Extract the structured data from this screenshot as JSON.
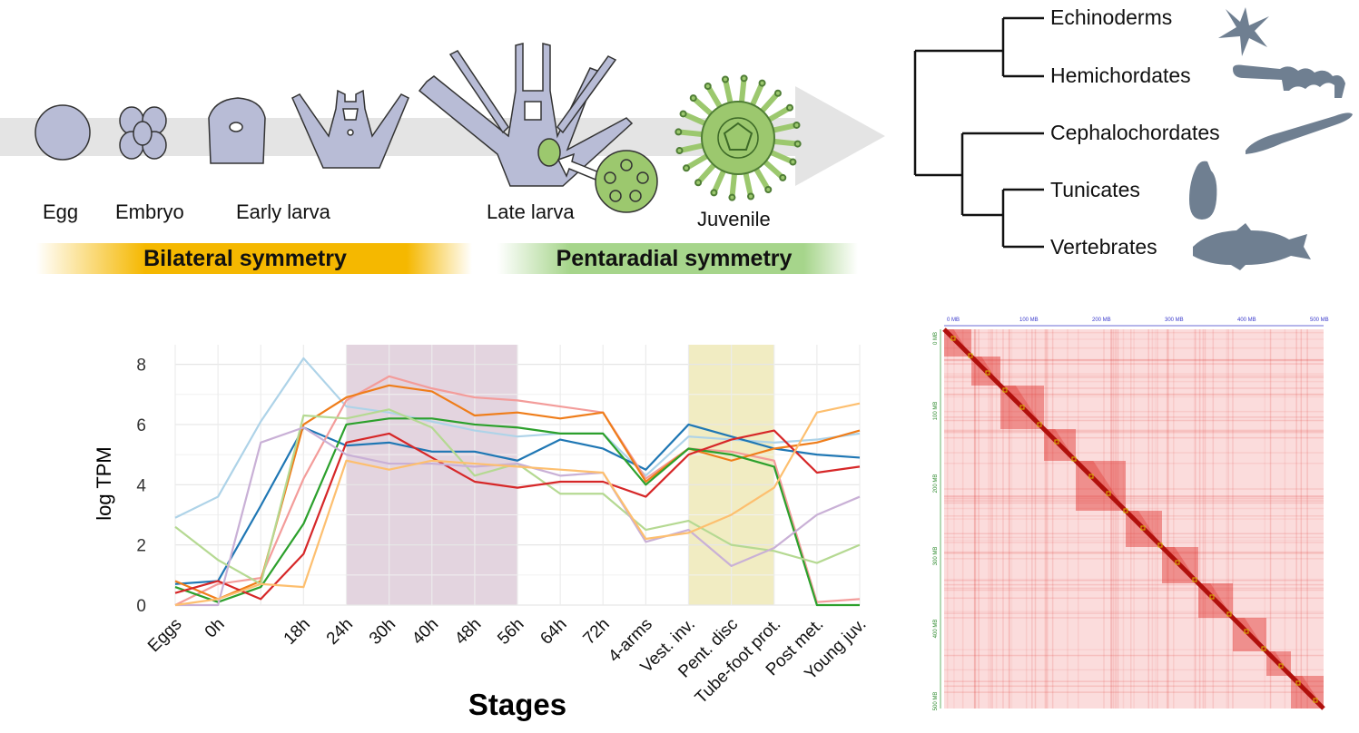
{
  "stages_panel": {
    "egg": "Egg",
    "embryo": "Embryo",
    "early_larva": "Early larva",
    "late_larva": "Late larva",
    "juvenile": "Juvenile",
    "bilateral": "Bilateral symmetry",
    "pentaradial": "Pentaradial symmetry",
    "colors": {
      "bilateral": "#f5b800",
      "pentaradial": "#9bcf7e",
      "larva": "#b8bcd6",
      "juvenile": "#9cc86e",
      "arrow": "#e3e3e3"
    }
  },
  "tree": {
    "taxa": [
      "Echinoderms",
      "Hemichordates",
      "Cephalochordates",
      "Tunicates",
      "Vertebrates"
    ],
    "silhouette_color": "#6f7f91"
  },
  "chart_data": {
    "type": "line",
    "xlabel": "Stages",
    "ylabel": "log TPM",
    "categories": [
      "Eggs",
      "0h",
      "",
      "18h",
      "24h",
      "30h",
      "40h",
      "48h",
      "56h",
      "64h",
      "72h",
      "4-arms",
      "Vest. inv.",
      "Pent. disc",
      "Tube-foot prot.",
      "Post met.",
      "Young juv."
    ],
    "ylim": [
      0,
      8.5
    ],
    "yticks": [
      0,
      2,
      4,
      6,
      8
    ],
    "grid": true,
    "shaded_regions": [
      {
        "from": "24h",
        "to": "56h",
        "color": "#e3d4df"
      },
      {
        "from": "Vest. inv.",
        "to": "Tube-foot prot.",
        "color": "#f1ecc2"
      }
    ],
    "series": [
      {
        "color": "#aed3e8",
        "values": [
          2.9,
          3.6,
          6.1,
          8.2,
          6.6,
          6.4,
          6.1,
          5.8,
          5.6,
          5.7,
          5.7,
          4.3,
          5.6,
          5.5,
          5.4,
          5.5,
          5.7
        ]
      },
      {
        "color": "#1f77b4",
        "values": [
          0.7,
          0.8,
          3.3,
          5.9,
          5.3,
          5.4,
          5.1,
          5.1,
          4.8,
          5.5,
          5.2,
          4.5,
          6.0,
          5.6,
          5.2,
          5.0,
          4.9
        ]
      },
      {
        "color": "#f39c9a",
        "values": [
          0.0,
          0.7,
          0.9,
          4.2,
          6.8,
          7.6,
          7.2,
          6.9,
          6.8,
          6.6,
          6.4,
          4.2,
          5.2,
          5.1,
          4.8,
          0.1,
          0.2
        ]
      },
      {
        "color": "#ef7d1a",
        "values": [
          0.8,
          0.2,
          0.8,
          6.0,
          6.9,
          7.3,
          7.1,
          6.3,
          6.4,
          6.2,
          6.4,
          4.1,
          5.2,
          4.8,
          5.2,
          5.4,
          5.8
        ]
      },
      {
        "color": "#2ca02c",
        "values": [
          0.6,
          0.1,
          0.6,
          2.7,
          6.0,
          6.2,
          6.2,
          6.0,
          5.9,
          5.7,
          5.7,
          4.0,
          5.2,
          5.0,
          4.6,
          0.0,
          0.0
        ]
      },
      {
        "color": "#b5d992",
        "values": [
          2.6,
          1.5,
          0.7,
          6.3,
          6.2,
          6.5,
          5.9,
          4.3,
          4.7,
          3.7,
          3.7,
          2.5,
          2.8,
          2.0,
          1.8,
          1.4,
          2.0
        ]
      },
      {
        "color": "#d62728",
        "values": [
          0.4,
          0.8,
          0.2,
          1.7,
          5.4,
          5.7,
          4.9,
          4.1,
          3.9,
          4.1,
          4.1,
          3.6,
          5.0,
          5.5,
          5.8,
          4.4,
          4.6
        ]
      },
      {
        "color": "#c9b0d6",
        "values": [
          0.0,
          0.0,
          5.4,
          5.9,
          5.0,
          4.7,
          4.7,
          4.6,
          4.7,
          4.3,
          4.4,
          2.1,
          2.5,
          1.3,
          1.9,
          3.0,
          3.6
        ]
      },
      {
        "color": "#fdbf6f",
        "values": [
          0.0,
          0.2,
          0.7,
          0.6,
          4.8,
          4.5,
          4.8,
          4.7,
          4.6,
          4.5,
          4.4,
          2.2,
          2.4,
          3.0,
          3.9,
          6.4,
          6.7
        ]
      }
    ]
  },
  "hic": {
    "top_ticks": [
      "0 MB",
      "100 MB",
      "200 MB",
      "300 MB",
      "400 MB",
      "500 MB"
    ],
    "left_ticks": [
      "0 MB",
      "100 MB",
      "200 MB",
      "300 MB",
      "400 MB",
      "500 MB"
    ],
    "color": "#e0302c"
  }
}
